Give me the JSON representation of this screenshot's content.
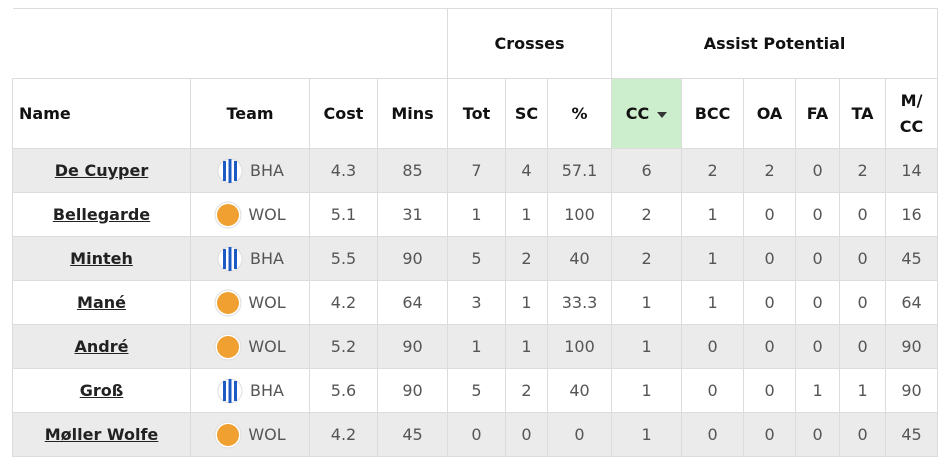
{
  "table": {
    "groups": [
      "Crosses",
      "Assist Potential"
    ],
    "columns": [
      "Name",
      "Team",
      "Cost",
      "Mins",
      "Tot",
      "SC",
      "%",
      "CC",
      "BCC",
      "OA",
      "FA",
      "TA",
      "M/CC"
    ],
    "rows": [
      [
        "De Cuyper",
        "BHA",
        4.3,
        85,
        7,
        4,
        57.1,
        6,
        2,
        2,
        0,
        2,
        14
      ],
      [
        "Bellegarde",
        "WOL",
        5.1,
        31,
        1,
        1,
        100,
        2,
        1,
        0,
        0,
        0,
        16
      ],
      [
        "Minteh",
        "BHA",
        5.5,
        90,
        5,
        2,
        40,
        2,
        1,
        0,
        0,
        0,
        45
      ],
      [
        "Mané",
        "WOL",
        4.2,
        64,
        3,
        1,
        33.3,
        1,
        1,
        0,
        0,
        0,
        64
      ],
      [
        "André",
        "WOL",
        5.2,
        90,
        1,
        1,
        100,
        1,
        0,
        0,
        0,
        0,
        90
      ],
      [
        "Groß",
        "BHA",
        5.6,
        90,
        5,
        2,
        40,
        1,
        0,
        0,
        1,
        1,
        90
      ],
      [
        "Møller Wolfe",
        "WOL",
        4.2,
        45,
        0,
        0,
        0,
        1,
        0,
        0,
        0,
        0,
        45
      ]
    ]
  }
}
